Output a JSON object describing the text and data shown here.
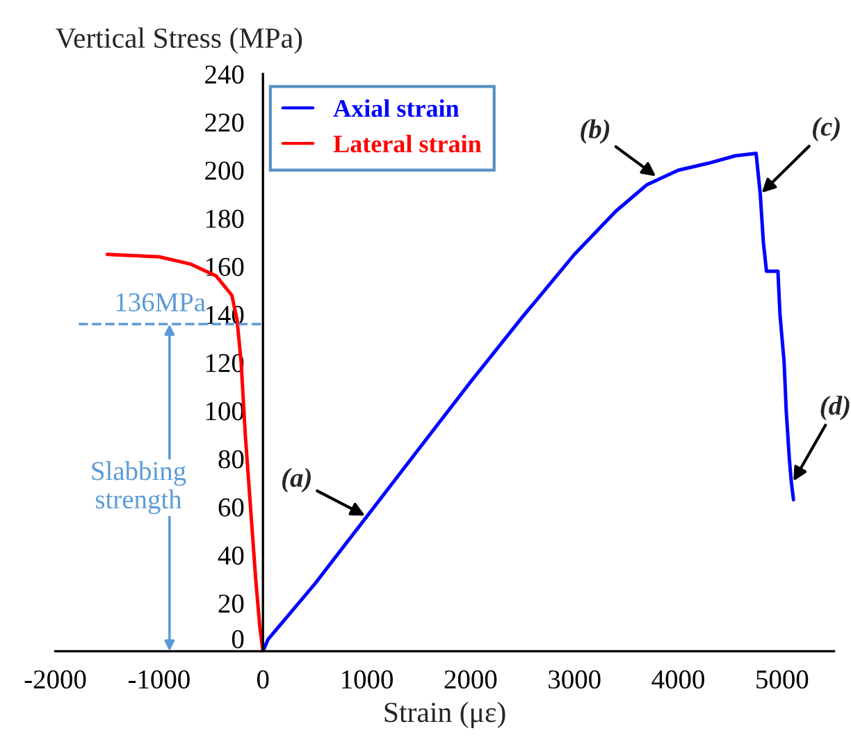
{
  "chart_data": {
    "type": "line",
    "xlabel": "Strain (με)",
    "ylabel": "Vertical Stress (MPa)",
    "xlim": [
      -2000,
      5500
    ],
    "ylim": [
      0,
      240
    ],
    "xticks": [
      -2000,
      -1000,
      0,
      1000,
      2000,
      3000,
      4000,
      5000
    ],
    "yticks": [
      0,
      20,
      40,
      60,
      80,
      100,
      120,
      140,
      160,
      180,
      200,
      220,
      240
    ],
    "grid": false,
    "legend": "top",
    "marker": "none",
    "line_style": "solid",
    "series": [
      {
        "name": "Axial strain",
        "color": "#0000ff",
        "x": [
          0,
          50,
          500,
          1000,
          1500,
          2000,
          2500,
          3000,
          3400,
          3700,
          4000,
          4300,
          4550,
          4750,
          4790,
          4820,
          4850,
          4960,
          4980,
          5020,
          5040,
          5070,
          5090,
          5110
        ],
        "values": [
          0,
          5,
          28,
          56,
          84,
          112,
          139,
          165,
          183,
          194,
          200,
          203,
          206,
          207,
          190,
          170,
          158,
          158,
          140,
          120,
          100,
          80,
          70,
          63
        ]
      },
      {
        "name": "Lateral strain",
        "color": "#ff0000",
        "x": [
          0,
          -30,
          -70,
          -120,
          -170,
          -210,
          -250,
          -300,
          -450,
          -700,
          -1000,
          -1500
        ],
        "values": [
          0,
          10,
          30,
          60,
          90,
          120,
          138,
          148,
          156,
          161,
          164,
          165
        ]
      }
    ],
    "ref_lines": [
      {
        "axis": "y",
        "value": 136,
        "label": "136MPa",
        "color": "#5b9bd5",
        "line_style": "dashed"
      }
    ],
    "annotations": [
      {
        "text": "(a)",
        "x": 1000,
        "y": 56
      },
      {
        "text": "(b)",
        "x": 3800,
        "y": 197
      },
      {
        "text": "(c)",
        "x": 4790,
        "y": 190
      },
      {
        "text": "(d)",
        "x": 5100,
        "y": 70
      },
      "Slabbing\nstrength"
    ]
  }
}
